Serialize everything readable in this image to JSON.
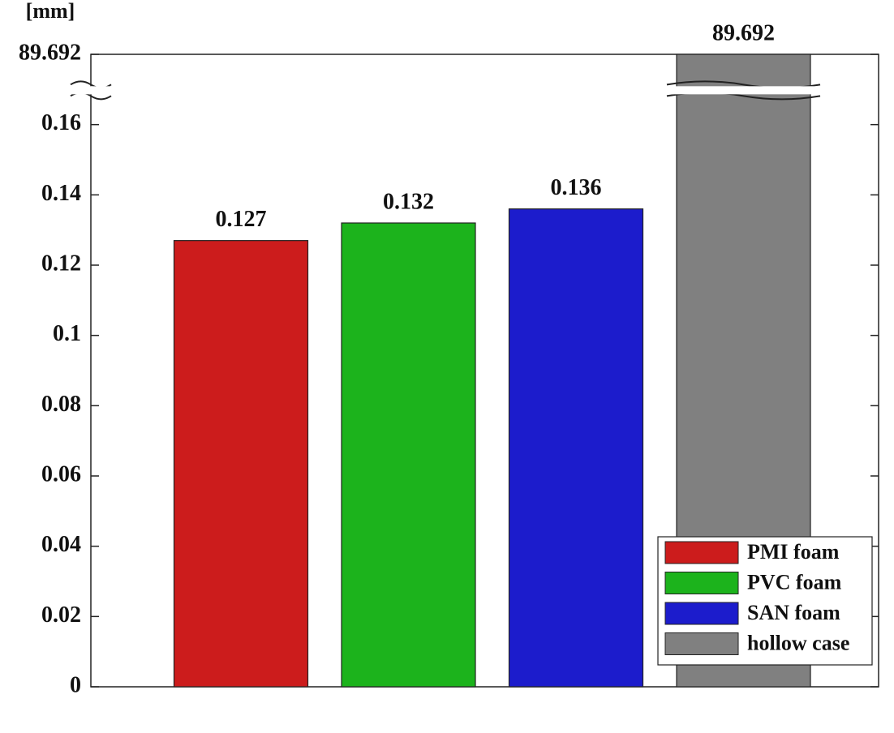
{
  "chart_data": {
    "type": "bar",
    "y_label": "[mm]",
    "categories": [
      null,
      null,
      null,
      null
    ],
    "series": [
      {
        "name": "PMI foam",
        "color": "#cc1c1c",
        "values": [
          0.127,
          null,
          null,
          null
        ]
      },
      {
        "name": "PVC foam",
        "color": "#1cb31c",
        "values": [
          null,
          0.132,
          null,
          null
        ]
      },
      {
        "name": "SAN foam",
        "color": "#1c1ccc",
        "values": [
          null,
          null,
          0.136,
          null
        ]
      },
      {
        "name": "hollow case",
        "color": "#808080",
        "values": [
          null,
          null,
          null,
          89.692
        ]
      }
    ],
    "ylim": [
      0,
      89.692
    ],
    "yticks": [
      0,
      0.02,
      0.04,
      0.06,
      0.08,
      0.1,
      0.12,
      0.14,
      0.16,
      89.692
    ],
    "axis_break": true,
    "grid": false,
    "legend": "lower right"
  }
}
